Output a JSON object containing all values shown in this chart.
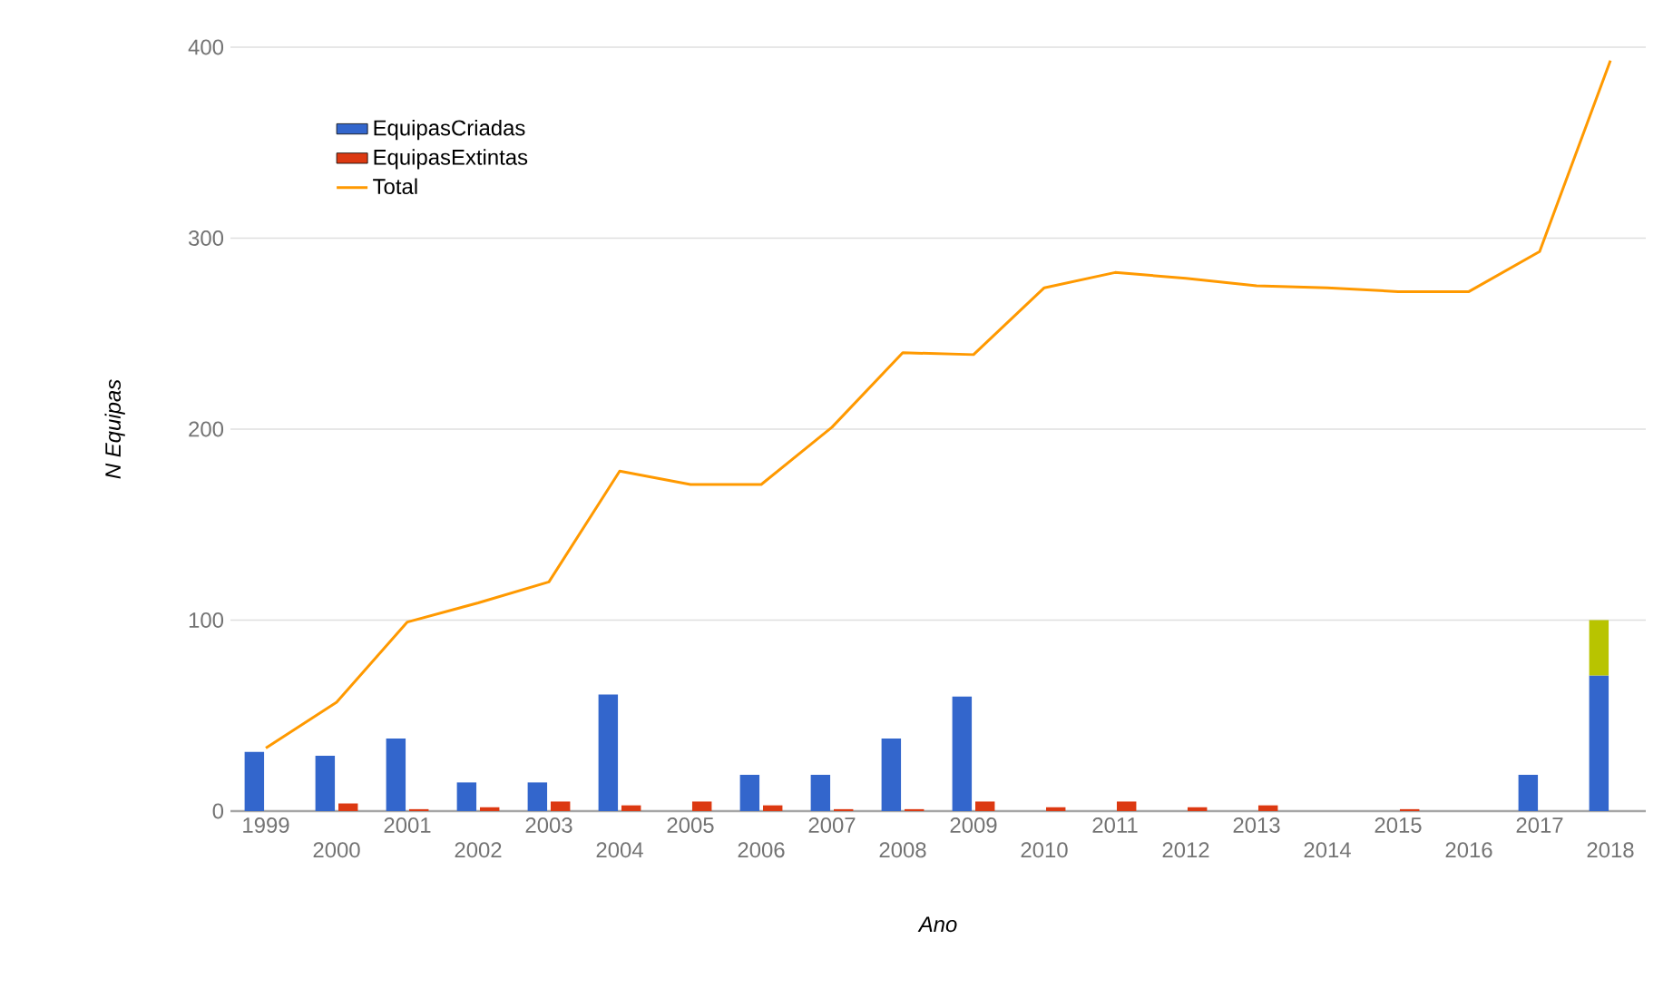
{
  "chart_data": {
    "type": "bar",
    "xlabel": "Ano",
    "ylabel": "N Equipas",
    "categories": [
      "1999",
      "2000",
      "2001",
      "2002",
      "2003",
      "2004",
      "2005",
      "2006",
      "2007",
      "2008",
      "2009",
      "2010",
      "2011",
      "2012",
      "2013",
      "2014",
      "2015",
      "2016",
      "2017",
      "2018"
    ],
    "series": [
      {
        "name": "EquipasCriadas",
        "color": "#3366cc",
        "values": [
          31,
          29,
          38,
          15,
          15,
          61,
          null,
          19,
          19,
          38,
          60,
          null,
          null,
          null,
          null,
          null,
          null,
          null,
          19,
          71
        ]
      },
      {
        "name": "EquipasExtintas",
        "color": "#dc3912",
        "values": [
          null,
          4,
          1,
          2,
          5,
          3,
          5,
          3,
          1,
          1,
          5,
          2,
          5,
          2,
          3,
          null,
          1,
          null,
          null,
          null
        ]
      },
      {
        "color": "#b8c400",
        "base": [
          null,
          null,
          null,
          null,
          null,
          null,
          null,
          null,
          null,
          null,
          null,
          null,
          null,
          null,
          null,
          null,
          null,
          null,
          null,
          71
        ],
        "values": [
          null,
          null,
          null,
          null,
          null,
          null,
          null,
          null,
          null,
          null,
          null,
          null,
          null,
          null,
          null,
          null,
          null,
          null,
          null,
          29
        ]
      },
      {
        "name": "Total",
        "type": "line",
        "color": "#ff9900",
        "values": [
          33,
          57,
          99,
          109,
          120,
          178,
          171,
          171,
          201,
          240,
          239,
          274,
          282,
          279,
          275,
          274,
          272,
          272,
          293,
          393
        ]
      }
    ],
    "ylim": [
      0,
      400
    ],
    "yticks": [
      0,
      100,
      200,
      300,
      400
    ],
    "grid": "y",
    "legend": "top left"
  }
}
